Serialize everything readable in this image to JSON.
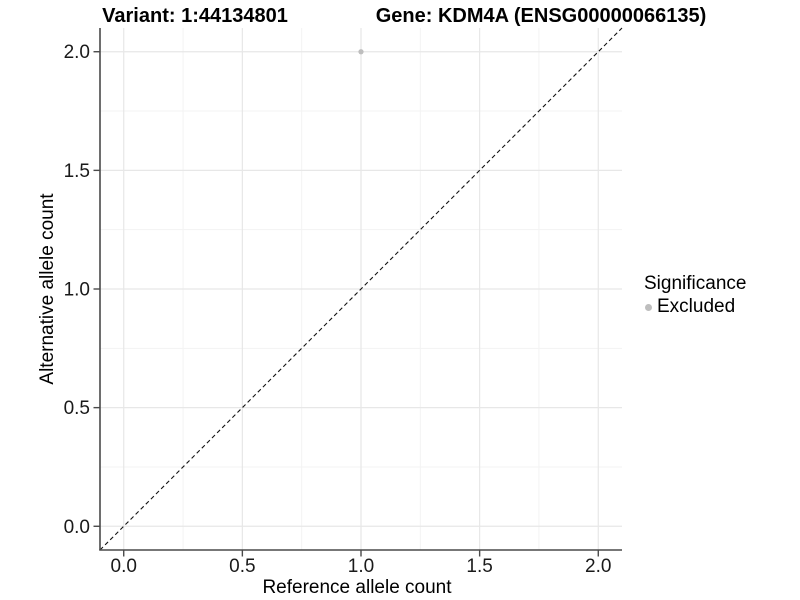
{
  "figure": {
    "titles": {
      "variant": "Variant: 1:44134801",
      "gene": "Gene: KDM4A (ENSG00000066135)"
    }
  },
  "legend": {
    "title": "Significance",
    "items": [
      {
        "label": "Excluded",
        "color": "#bebebe"
      }
    ]
  },
  "chart_data": {
    "type": "scatter",
    "title": "Variant: 1:44134801 / Gene: KDM4A (ENSG00000066135)",
    "xlabel": "Reference allele count",
    "ylabel": "Alternative allele count",
    "xlim": [
      -0.1,
      2.1
    ],
    "ylim": [
      -0.1,
      2.1
    ],
    "xticks": [
      "0.0",
      "0.5",
      "1.0",
      "1.5",
      "2.0"
    ],
    "yticks": [
      "0.0",
      "0.5",
      "1.0",
      "1.5",
      "2.0"
    ],
    "xtick_values": [
      0,
      0.5,
      1,
      1.5,
      2
    ],
    "ytick_values": [
      0,
      0.5,
      1,
      1.5,
      2
    ],
    "minor_tick_values": [
      0.25,
      0.75,
      1.25,
      1.75
    ],
    "grid": "major and minor, light grey on white",
    "legend_position": "right",
    "series": [
      {
        "name": "Excluded",
        "color": "#bebebe",
        "points": [
          {
            "x": 1.0,
            "y": 2.0
          }
        ]
      }
    ],
    "reference_line": {
      "kind": "identity y=x",
      "style": "dashed",
      "color": "#141414",
      "x": [
        -0.1,
        2.1
      ],
      "y": [
        -0.1,
        2.1
      ]
    }
  },
  "style": {
    "background": "#ffffff",
    "grid_major_color": "#e7e7e7",
    "grid_minor_color": "#f3f3f3",
    "axis_line_color": "#4a4a4a",
    "tick_color": "#4a4a4a",
    "tick_label_color": "#1a1a1a",
    "point_color": "#bebebe",
    "point_radius": 2.6
  }
}
